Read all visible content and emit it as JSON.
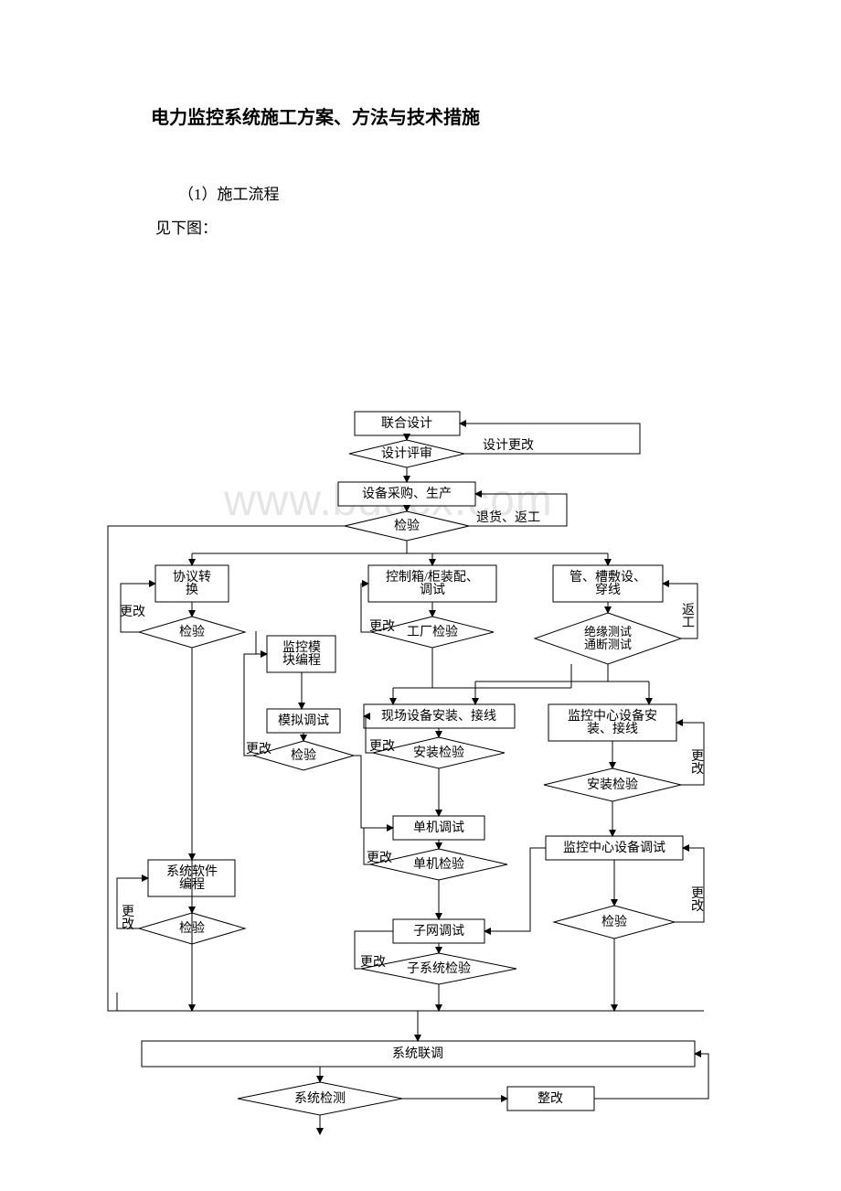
{
  "title": "电力监控系统施工方案、方法与技术措施",
  "intro1": "（1）施工流程",
  "intro2": "见下图：",
  "watermark": "www.bdocx.com",
  "nodes": {
    "n1": {
      "type": "rect",
      "label": "联合设计"
    },
    "n2": {
      "type": "diamond",
      "label": "设计评审"
    },
    "n3": {
      "type": "rect",
      "label": "设备采购、生产"
    },
    "n4": {
      "type": "diamond",
      "label": "检验"
    },
    "n5": {
      "type": "rect",
      "label": "协议转\n换"
    },
    "n6": {
      "type": "diamond",
      "label": "检验"
    },
    "n7": {
      "type": "rect",
      "label": "监控模\n块编程"
    },
    "n8": {
      "type": "rect",
      "label": "模拟调试"
    },
    "n9": {
      "type": "diamond",
      "label": "检验"
    },
    "n10": {
      "type": "rect",
      "label": "控制箱/柜装配、\n调试"
    },
    "n11": {
      "type": "diamond",
      "label": "工厂检验"
    },
    "n12": {
      "type": "rect",
      "label": "现场设备安装、接线"
    },
    "n13": {
      "type": "diamond",
      "label": "安装检验"
    },
    "n14": {
      "type": "rect",
      "label": "单机调试"
    },
    "n15": {
      "type": "diamond",
      "label": "单机检验"
    },
    "n16": {
      "type": "rect",
      "label": "子网调试"
    },
    "n17": {
      "type": "diamond",
      "label": "子系统检验"
    },
    "n18": {
      "type": "rect",
      "label": "管、槽敷设、\n穿线"
    },
    "n19": {
      "type": "diamond",
      "label": "绝缘测试\n通断测试"
    },
    "n20": {
      "type": "rect",
      "label": "监控中心设备安\n装、接线"
    },
    "n21": {
      "type": "diamond",
      "label": "安装检验"
    },
    "n22": {
      "type": "rect",
      "label": "监控中心设备调试"
    },
    "n23": {
      "type": "diamond",
      "label": "检验"
    },
    "n24": {
      "type": "rect",
      "label": "系统软件\n编程"
    },
    "n25": {
      "type": "diamond",
      "label": "检验"
    },
    "n26": {
      "type": "rect",
      "label": "系统联调"
    },
    "n27": {
      "type": "diamond",
      "label": "系统检测"
    },
    "n28": {
      "type": "rect",
      "label": "整改"
    }
  },
  "edge_labels": {
    "e2_1": "设计更改",
    "e4_3": "退货、返工",
    "e6_5": "更改",
    "e11_10": "更改",
    "e19_18": "返\n工",
    "e9_7": "更改",
    "e13_12": "更改",
    "e15_14": "更改",
    "e17_16": "更改",
    "e21_20": "更\n改",
    "e23_22": "更\n改",
    "e25_24": "更\n改"
  },
  "style": {
    "stroke": "#000000",
    "bg": "#ffffff",
    "arrow_size": 6,
    "font_main": 14,
    "font_title": 20
  }
}
